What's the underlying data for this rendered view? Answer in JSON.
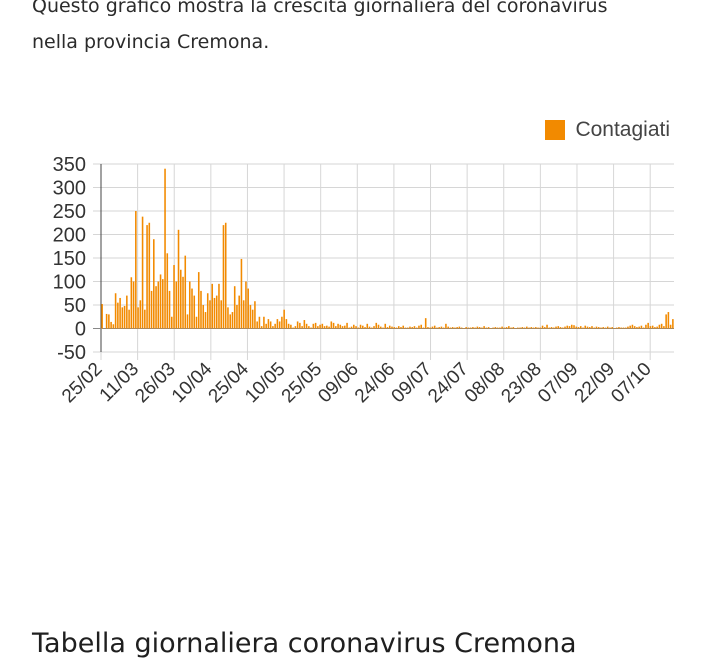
{
  "intro": {
    "line1": "Questo grafico mostra la crescita giornaliera del coronavirus",
    "line2": "nella provincia Cremona."
  },
  "section_title": "Tabella giornaliera coronavirus Cremona",
  "colors": {
    "bar": "#f28a00",
    "grid": "#d6d6d6",
    "axis": "#444444"
  },
  "chart_data": {
    "type": "bar",
    "legend": {
      "label": "Contagiati",
      "position": "top-right"
    },
    "ylim": [
      -50,
      350
    ],
    "yticks": [
      350,
      300,
      250,
      200,
      150,
      100,
      50,
      0,
      -50
    ],
    "xticks": [
      "25/02",
      "11/03",
      "26/03",
      "10/04",
      "25/04",
      "10/05",
      "25/05",
      "09/06",
      "24/06",
      "09/07",
      "24/07",
      "08/08",
      "23/08",
      "07/09",
      "22/09",
      "07/10"
    ],
    "grid": true,
    "x_start": "25/02",
    "series": [
      {
        "name": "Contagiati",
        "values": [
          52,
          0,
          31,
          30,
          14,
          9,
          75,
          55,
          65,
          45,
          48,
          70,
          40,
          109,
          100,
          250,
          45,
          60,
          238,
          40,
          220,
          225,
          80,
          190,
          90,
          100,
          115,
          105,
          340,
          160,
          80,
          25,
          135,
          100,
          210,
          125,
          110,
          155,
          30,
          100,
          85,
          70,
          25,
          120,
          80,
          50,
          35,
          75,
          60,
          95,
          65,
          70,
          95,
          60,
          220,
          225,
          45,
          30,
          35,
          90,
          50,
          70,
          148,
          60,
          100,
          85,
          50,
          40,
          58,
          15,
          25,
          5,
          25,
          10,
          20,
          15,
          5,
          10,
          20,
          15,
          25,
          40,
          20,
          10,
          8,
          2,
          5,
          15,
          12,
          5,
          18,
          10,
          5,
          2,
          10,
          12,
          5,
          8,
          10,
          5,
          6,
          4,
          15,
          12,
          5,
          10,
          8,
          5,
          6,
          12,
          2,
          4,
          8,
          5,
          2,
          8,
          6,
          3,
          10,
          4,
          2,
          5,
          12,
          8,
          4,
          2,
          10,
          3,
          6,
          4,
          3,
          2,
          5,
          3,
          6,
          2,
          2,
          4,
          3,
          5,
          2,
          6,
          8,
          2,
          22,
          3,
          2,
          4,
          6,
          2,
          3,
          4,
          2,
          10,
          4,
          2,
          3,
          2,
          3,
          4,
          2,
          1,
          3,
          2,
          2,
          3,
          2,
          4,
          3,
          2,
          5,
          2,
          3,
          1,
          2,
          3,
          2,
          2,
          4,
          2,
          3,
          5,
          2,
          3,
          1,
          2,
          2,
          3,
          2,
          4,
          2,
          3,
          2,
          3,
          2,
          2,
          6,
          3,
          8,
          2,
          3,
          2,
          4,
          5,
          3,
          2,
          4,
          6,
          5,
          8,
          7,
          4,
          3,
          5,
          2,
          6,
          4,
          3,
          5,
          2,
          4,
          3,
          2,
          3,
          2,
          4,
          2,
          3,
          1,
          2,
          3,
          2,
          2,
          2,
          4,
          6,
          8,
          5,
          3,
          4,
          6,
          2,
          8,
          12,
          5,
          6,
          3,
          4,
          8,
          10,
          5,
          30,
          35,
          8,
          20
        ]
      }
    ]
  }
}
